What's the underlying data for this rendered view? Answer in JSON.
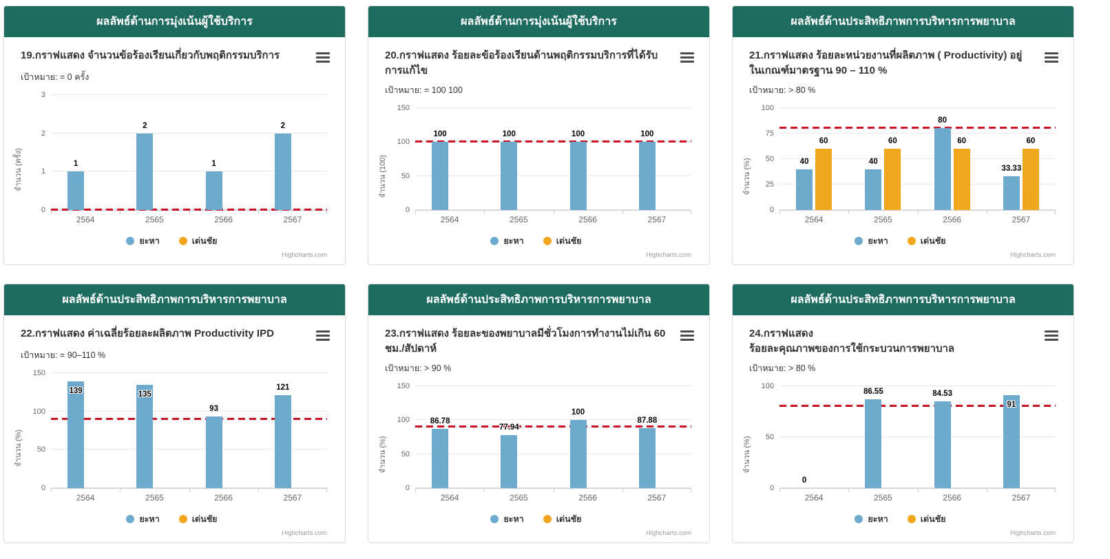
{
  "page": {
    "background": "#ffffff",
    "card_border": "#d9d9d9"
  },
  "colors": {
    "header_bg": "#1E6B5F",
    "header_text": "#ffffff",
    "series_blue": "#6EA9CE",
    "series_yellow": "#F0A71E",
    "target_red": "#CC1126",
    "gridline": "#e6e6e6",
    "axis_line": "#cccccc",
    "title_text": "#333333",
    "tick_text": "#666666",
    "credit_text": "#999999"
  },
  "icons": {
    "hamburger_menu": "context-menu"
  },
  "chart_data": [
    {
      "type": "bar",
      "panel_header": "ผลลัพธ์ด้านการมุ่งเน้นผู้ใช้บริการ",
      "title": "19.กราฟแสดง จำนวนข้อร้องเรียนเกี่ยวกับพฤติกรรมบริการ",
      "subtitle": "เป้าหมาย: = 0 ครั้ง",
      "ylabel": "จำนวน (ครั้ง)",
      "ylim": [
        0,
        3
      ],
      "yticks": [
        0,
        1,
        2,
        3
      ],
      "categories": [
        "2564",
        "2565",
        "2566",
        "2567"
      ],
      "target_line": 0,
      "grid": true,
      "legend_position": "bottom-center",
      "series": [
        {
          "name": "ยะหา",
          "color": "#6EA9CE",
          "values": [
            1,
            2,
            1,
            2
          ]
        },
        {
          "name": "เด่นชัย",
          "color": "#F0A71E",
          "values": [
            null,
            null,
            null,
            null
          ]
        }
      ],
      "credit": "Highcharts.com"
    },
    {
      "type": "bar",
      "panel_header": "ผลลัพธ์ด้านการมุ่งเน้นผู้ใช้บริการ",
      "title": "20.กราฟแสดง ร้อยละข้อร้องเรียนด้านพฤติกรรมบริการที่ได้รับการแก้ไข",
      "subtitle": "เป้าหมาย: = 100 100",
      "ylabel": "จำนวน (100)",
      "ylim": [
        0,
        150
      ],
      "yticks": [
        0,
        50,
        100,
        150
      ],
      "categories": [
        "2564",
        "2565",
        "2566",
        "2567"
      ],
      "target_line": 100,
      "grid": true,
      "legend_position": "bottom-center",
      "series": [
        {
          "name": "ยะหา",
          "color": "#6EA9CE",
          "values": [
            100,
            100,
            100,
            100
          ]
        },
        {
          "name": "เด่นชัย",
          "color": "#F0A71E",
          "values": [
            null,
            null,
            null,
            null
          ]
        }
      ],
      "credit": "Highcharts.com"
    },
    {
      "type": "bar",
      "panel_header": "ผลลัพธ์ด้านประสิทธิภาพการบริหารการพยาบาล",
      "title": "21.กราฟแสดง ร้อยละหน่วยงานที่ผลิตภาพ ( Productivity) อยู่ ในเกณฑ์มาตรฐาน 90 – 110 %",
      "subtitle": "เป้าหมาย: > 80 %",
      "ylabel": "จำนวน (%)",
      "ylim": [
        0,
        100
      ],
      "yticks": [
        0,
        25,
        50,
        75,
        100
      ],
      "categories": [
        "2564",
        "2565",
        "2566",
        "2567"
      ],
      "target_line": 80,
      "grid": true,
      "legend_position": "bottom-center",
      "series": [
        {
          "name": "ยะหา",
          "color": "#6EA9CE",
          "values": [
            40,
            40,
            80,
            33.33
          ]
        },
        {
          "name": "เด่นชัย",
          "color": "#F0A71E",
          "values": [
            60,
            60,
            60,
            60
          ]
        }
      ],
      "credit": "Highcharts.com"
    },
    {
      "type": "bar",
      "panel_header": "ผลลัพธ์ด้านประสิทธิภาพการบริหารการพยาบาล",
      "title": "22.กราฟแสดง ค่าเฉลี่ยร้อยละผลิตภาพ Productivity IPD",
      "subtitle": "เป้าหมาย: = 90–110 %",
      "ylabel": "จำนวน (%)",
      "ylim": [
        0,
        150
      ],
      "yticks": [
        0,
        50,
        100,
        150
      ],
      "categories": [
        "2564",
        "2565",
        "2566",
        "2567"
      ],
      "target_line": 90,
      "grid": true,
      "legend_position": "bottom-center",
      "series": [
        {
          "name": "ยะหา",
          "color": "#6EA9CE",
          "values": [
            139,
            135,
            93,
            121
          ],
          "label_inside": [
            true,
            true,
            false,
            false
          ]
        },
        {
          "name": "เด่นชัย",
          "color": "#F0A71E",
          "values": [
            null,
            null,
            null,
            null
          ]
        }
      ],
      "credit": "Highcharts.com"
    },
    {
      "type": "bar",
      "panel_header": "ผลลัพธ์ด้านประสิทธิภาพการบริหารการพยาบาล",
      "title": "23.กราฟแสดง ร้อยละของพยาบาลมีชั่วโมงการทำงานไม่เกิน 60 ชม./สัปดาห์",
      "subtitle": "เป้าหมาย: > 90 %",
      "ylabel": "จำนวน (%)",
      "ylim": [
        0,
        150
      ],
      "yticks": [
        0,
        50,
        100,
        150
      ],
      "categories": [
        "2564",
        "2565",
        "2566",
        "2567"
      ],
      "target_line": 90,
      "grid": true,
      "legend_position": "bottom-center",
      "series": [
        {
          "name": "ยะหา",
          "color": "#6EA9CE",
          "values": [
            86.78,
            77.94,
            100,
            87.88
          ]
        },
        {
          "name": "เด่นชัย",
          "color": "#F0A71E",
          "values": [
            null,
            null,
            null,
            null
          ]
        }
      ],
      "credit": "Highcharts.com"
    },
    {
      "type": "bar",
      "panel_header": "ผลลัพธ์ด้านประสิทธิภาพการบริหารการพยาบาล",
      "title": "24.กราฟแสดง\nร้อยละคุณภาพของการใช้กระบวนการพยาบาล",
      "subtitle": "เป้าหมาย: > 80 %",
      "ylabel": "จำนวน (%)",
      "ylim": [
        0,
        100
      ],
      "yticks": [
        0,
        50,
        100
      ],
      "categories": [
        "2564",
        "2565",
        "2566",
        "2567"
      ],
      "target_line": 80,
      "grid": true,
      "legend_position": "bottom-center",
      "series": [
        {
          "name": "ยะหา",
          "color": "#6EA9CE",
          "values": [
            0,
            86.55,
            84.53,
            91
          ],
          "label_inside": [
            false,
            false,
            false,
            true
          ]
        },
        {
          "name": "เด่นชัย",
          "color": "#F0A71E",
          "values": [
            null,
            null,
            null,
            null
          ]
        }
      ],
      "credit": "Highcharts.com"
    }
  ]
}
